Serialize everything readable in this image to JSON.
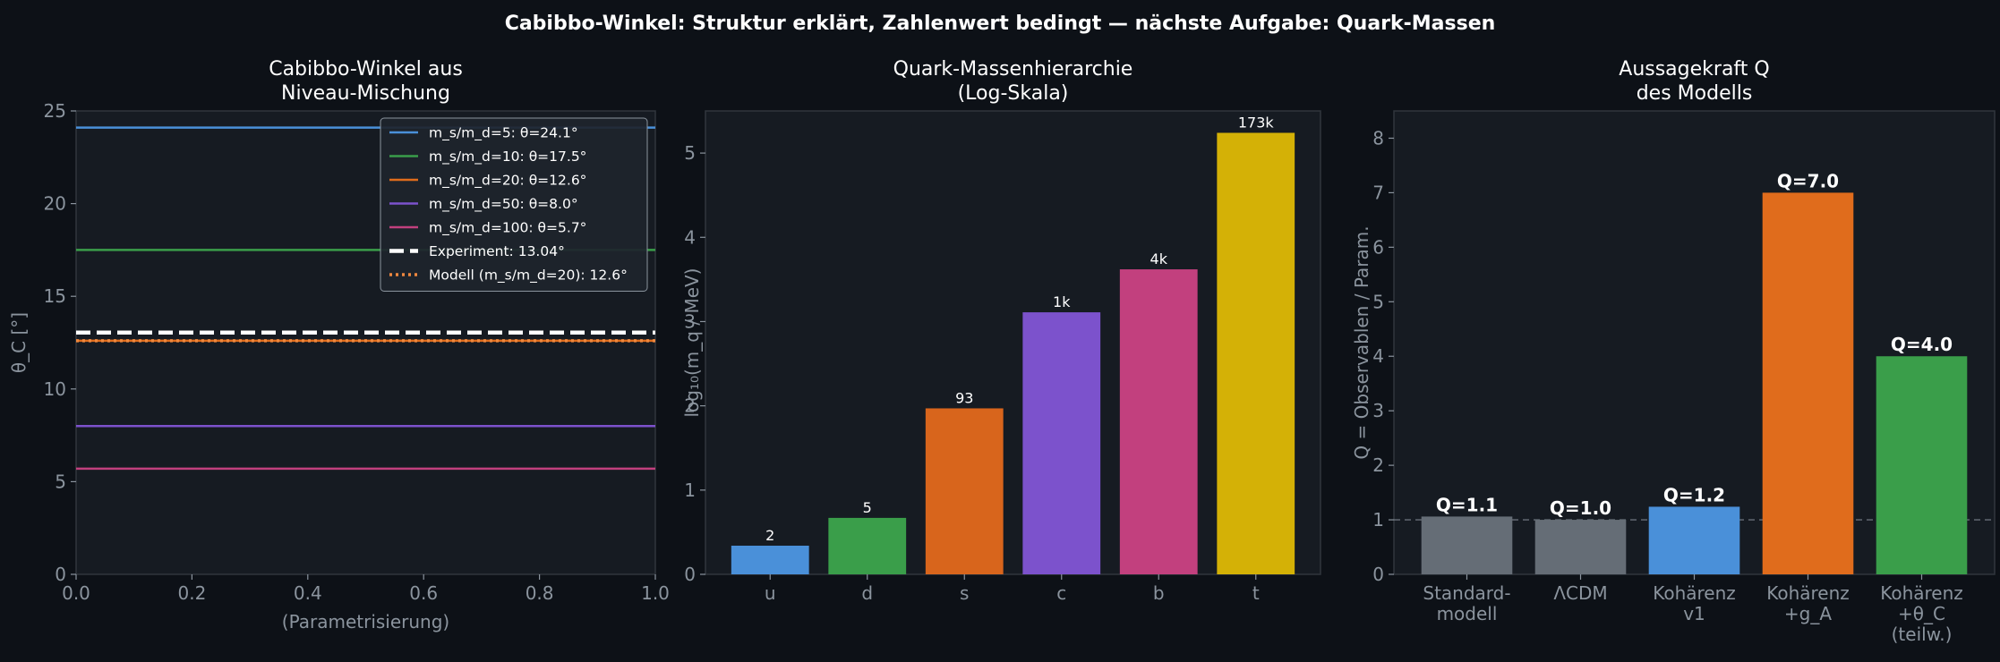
{
  "suptitle": "Cabibbo-Winkel: Struktur erklärt, Zahlenwert bedingt — nächste Aufgabe: Quark-Massen",
  "colors": {
    "background": "#0d1117",
    "axes_face": "#161b22",
    "text": "#ffffff",
    "muted": "#8b949e"
  },
  "chart_data": [
    {
      "type": "line",
      "title_lines": [
        "Cabibbo-Winkel aus",
        "Niveau-Mischung"
      ],
      "xlabel": "(Parametrisierung)",
      "ylabel": "θ_C [°]",
      "xlim": [
        0,
        1
      ],
      "ylim": [
        0,
        25
      ],
      "xticks": [
        "0.0",
        "0.2",
        "0.4",
        "0.6",
        "0.8",
        "1.0"
      ],
      "yticks": [
        "0",
        "5",
        "10",
        "15",
        "20",
        "25"
      ],
      "legend_position": "top-right",
      "series": [
        {
          "name": "m_s/m_d=5: θ=24.1°",
          "x": [
            0,
            1
          ],
          "y": [
            24.1,
            24.1
          ],
          "color": "#4a90d9",
          "style": "solid"
        },
        {
          "name": "m_s/m_d=10: θ=17.5°",
          "x": [
            0,
            1
          ],
          "y": [
            17.5,
            17.5
          ],
          "color": "#3a9e4a",
          "style": "solid"
        },
        {
          "name": "m_s/m_d=20: θ=12.6°",
          "x": [
            0,
            1
          ],
          "y": [
            12.6,
            12.6
          ],
          "color": "#e06c1c",
          "style": "solid"
        },
        {
          "name": "m_s/m_d=50: θ=8.0°",
          "x": [
            0,
            1
          ],
          "y": [
            8.0,
            8.0
          ],
          "color": "#7c52cc",
          "style": "solid"
        },
        {
          "name": "m_s/m_d=100: θ=5.7°",
          "x": [
            0,
            1
          ],
          "y": [
            5.7,
            5.7
          ],
          "color": "#c2407e",
          "style": "solid"
        },
        {
          "name": "Experiment: 13.04°",
          "x": [
            0,
            1
          ],
          "y": [
            13.04,
            13.04
          ],
          "color": "#ffffff",
          "style": "dashed"
        },
        {
          "name": "Modell (m_s/m_d=20): 12.6°",
          "x": [
            0,
            1
          ],
          "y": [
            12.6,
            12.6
          ],
          "color": "#f0883e",
          "style": "dotted"
        }
      ]
    },
    {
      "type": "bar",
      "title_lines": [
        "Quark-Massenhierarchie",
        "(Log-Skala)"
      ],
      "xlabel": "",
      "ylabel": "log₁₀(m_q / MeV)",
      "ylim": [
        0,
        5.5
      ],
      "yticks": [
        "0",
        "1",
        "2",
        "3",
        "4",
        "5"
      ],
      "categories": [
        "u",
        "d",
        "s",
        "c",
        "b",
        "t"
      ],
      "values": [
        0.34,
        0.67,
        1.97,
        3.11,
        3.62,
        5.24
      ],
      "bar_labels": [
        "2",
        "5",
        "93",
        "1k",
        "4k",
        "173k"
      ],
      "colors": [
        "#4a90d9",
        "#3a9e4a",
        "#d8651c",
        "#7c52cc",
        "#c2407e",
        "#d4b106"
      ]
    },
    {
      "type": "bar",
      "title_lines": [
        "Aussagekraft Q",
        "des Modells"
      ],
      "xlabel": "",
      "ylabel": "Q = Observablen / Param.",
      "ylim": [
        0,
        8.5
      ],
      "yticks": [
        "0",
        "1",
        "2",
        "3",
        "4",
        "5",
        "6",
        "7",
        "8"
      ],
      "categories": [
        [
          "Standard-",
          "modell"
        ],
        [
          "ΛCDM"
        ],
        [
          "Kohärenz",
          "v1"
        ],
        [
          "Kohärenz",
          "+g_A"
        ],
        [
          "Kohärenz",
          "+θ_C",
          "(teilw.)"
        ]
      ],
      "values": [
        1.06,
        1.0,
        1.24,
        7.0,
        4.0
      ],
      "bar_labels": [
        "Q=1.1",
        "Q=1.0",
        "Q=1.2",
        "Q=7.0",
        "Q=4.0"
      ],
      "colors": [
        "#656d76",
        "#656d76",
        "#4a90d9",
        "#e06c1c",
        "#3a9e4a"
      ],
      "reference_line": 1
    }
  ]
}
